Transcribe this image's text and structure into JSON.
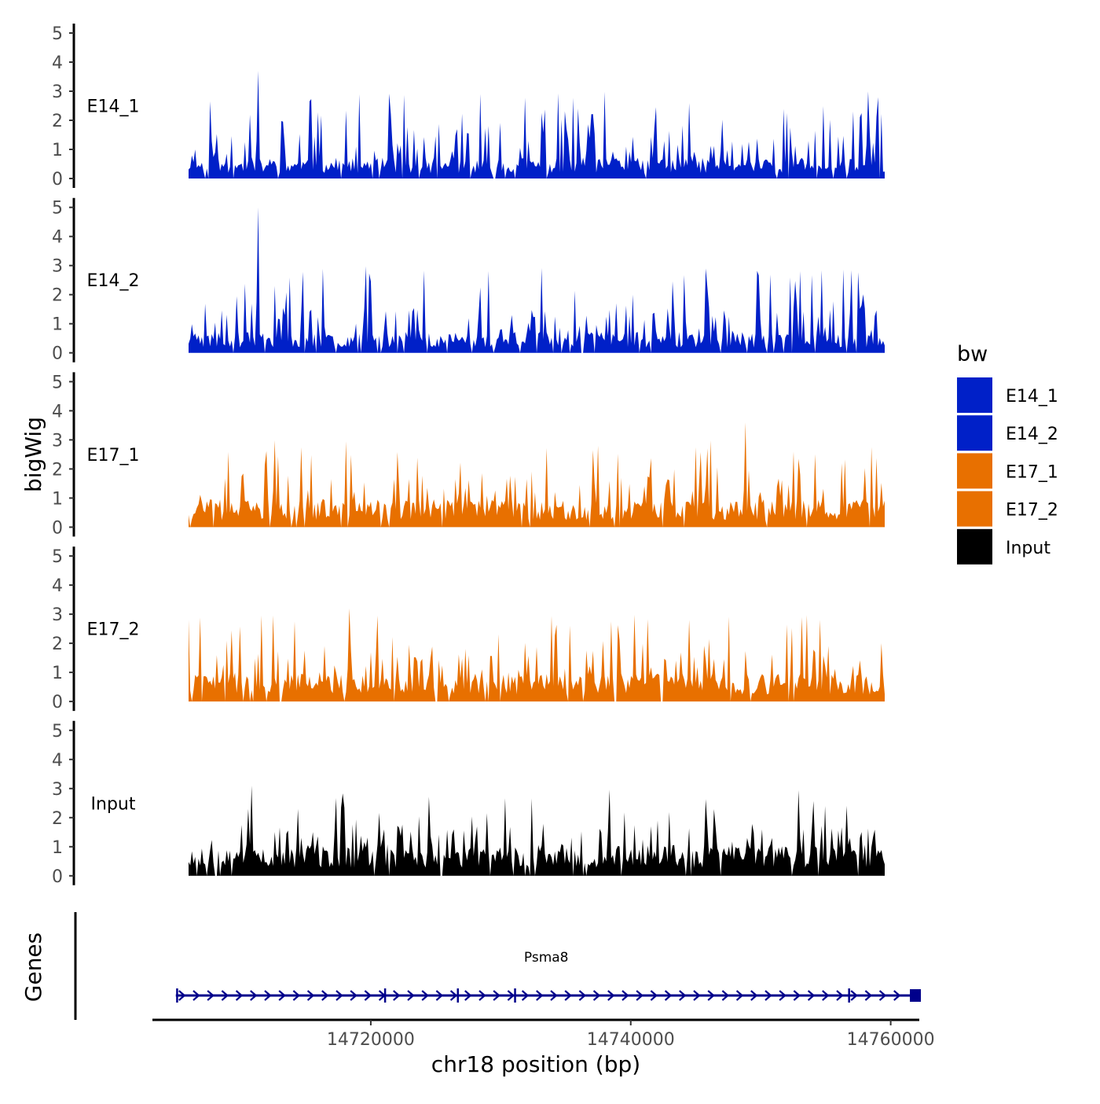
{
  "chart_data": {
    "type": "area",
    "title": "",
    "ylabel": "bigWig",
    "xlabel": "chr18 position (bp)",
    "chromosome": "chr18",
    "xlim": [
      14703200,
      14762200
    ],
    "ylim": [
      0,
      5
    ],
    "y_ticks": [
      0,
      1,
      2,
      3,
      4,
      5
    ],
    "x_ticks": [
      14720000,
      14740000,
      14760000
    ],
    "x_tick_labels": [
      "14720000",
      "14740000",
      "14760000"
    ],
    "legend": {
      "title": "bw",
      "placement": "right",
      "entries": [
        "E14_1",
        "E14_2",
        "E17_1",
        "E17_2",
        "Input"
      ]
    },
    "series": [
      {
        "name": "E14_1",
        "label": "E14_1",
        "color": "#0020c8",
        "peak": 3.7,
        "peak_pos": 14711400,
        "baseline": 0.6,
        "seed": 11
      },
      {
        "name": "E14_2",
        "label": "E14_2",
        "color": "#0020c8",
        "peak": 5.0,
        "peak_pos": 14711400,
        "baseline": 0.6,
        "seed": 23
      },
      {
        "name": "E17_1",
        "label": "E17_1",
        "color": "#e87000",
        "peak": 3.6,
        "peak_pos": 14748800,
        "baseline": 0.8,
        "seed": 37
      },
      {
        "name": "E17_2",
        "label": "E17_2",
        "color": "#e87000",
        "peak": 3.2,
        "peak_pos": 14718300,
        "baseline": 0.8,
        "seed": 41
      },
      {
        "name": "Input",
        "label": "Input",
        "color": "#000000",
        "peak": 3.1,
        "peak_pos": 14710800,
        "baseline": 0.9,
        "seed": 53
      }
    ],
    "genes_panel": {
      "label": "Genes",
      "gene": {
        "name": "Psma8",
        "start": 14705000,
        "end": 14762000,
        "strand": "+",
        "color": "#00008b",
        "exons": [
          14705100,
          14721100,
          14726700,
          14731100,
          14756800,
          14761900
        ]
      }
    }
  }
}
